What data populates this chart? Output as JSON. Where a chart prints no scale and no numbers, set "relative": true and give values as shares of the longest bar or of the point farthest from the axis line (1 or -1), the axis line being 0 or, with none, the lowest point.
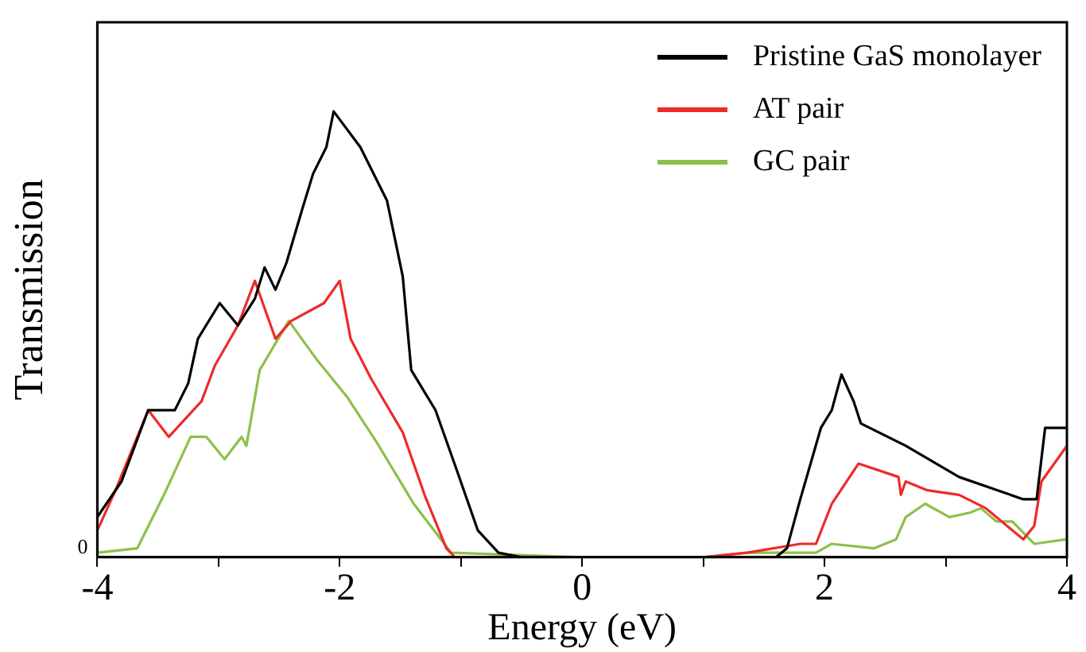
{
  "chart_data": {
    "type": "line",
    "relative": true,
    "xlabel": "Energy (eV)",
    "ylabel": "Transmission",
    "xlim": [
      -4,
      4
    ],
    "xticks": [
      -4,
      {
        "value": -3,
        "label": null
      },
      -2,
      {
        "value": -1,
        "label": null
      },
      0,
      {
        "value": 1,
        "label": null
      },
      2,
      {
        "value": 3,
        "label": null
      },
      4
    ],
    "annotations": [
      "0"
    ],
    "grid": false,
    "legend": "top right",
    "marker": "none",
    "line_style": "solid",
    "series": [
      {
        "name": "Pristine GaS monolayer",
        "color": "#000000",
        "x": [
          -4.0,
          -3.8,
          -3.58,
          -3.36,
          -3.25,
          -3.17,
          -2.99,
          -2.84,
          -2.7,
          -2.62,
          -2.53,
          -2.44,
          -2.31,
          -2.22,
          -2.11,
          -2.05,
          -1.83,
          -1.61,
          -1.48,
          -1.41,
          -1.21,
          -1.04,
          -0.86,
          -0.69,
          -0.5,
          0,
          1,
          1.6,
          1.69,
          1.8,
          1.97,
          2.06,
          2.14,
          2.24,
          2.3,
          2.67,
          3.11,
          3.64,
          3.75,
          3.82,
          4.0
        ],
        "values": [
          0.09,
          0.17,
          0.33,
          0.33,
          0.39,
          0.49,
          0.57,
          0.52,
          0.58,
          0.65,
          0.6,
          0.66,
          0.78,
          0.86,
          0.92,
          1.0,
          0.92,
          0.8,
          0.63,
          0.42,
          0.33,
          0.2,
          0.06,
          0.01,
          0,
          0,
          0,
          0,
          0.02,
          0.13,
          0.29,
          0.33,
          0.41,
          0.35,
          0.3,
          0.25,
          0.18,
          0.13,
          0.13,
          0.29,
          0.29
        ]
      },
      {
        "name": "AT pair",
        "color": "#ee2a2a",
        "x": [
          -4.0,
          -3.85,
          -3.58,
          -3.41,
          -3.14,
          -3.03,
          -2.84,
          -2.7,
          -2.53,
          -2.4,
          -2.13,
          -2.0,
          -1.91,
          -1.74,
          -1.48,
          -1.3,
          -1.12,
          -1.05,
          0,
          1,
          1.36,
          1.8,
          1.93,
          2.06,
          2.28,
          2.61,
          2.63,
          2.67,
          2.85,
          3.11,
          3.33,
          3.64,
          3.73,
          3.79,
          4.0
        ],
        "values": [
          0.06,
          0.15,
          0.33,
          0.27,
          0.35,
          0.43,
          0.52,
          0.62,
          0.49,
          0.53,
          0.57,
          0.62,
          0.49,
          0.4,
          0.28,
          0.14,
          0.02,
          0,
          0,
          0,
          0.01,
          0.03,
          0.03,
          0.12,
          0.21,
          0.18,
          0.14,
          0.17,
          0.15,
          0.14,
          0.11,
          0.04,
          0.07,
          0.17,
          0.25
        ]
      },
      {
        "name": "GC pair",
        "color": "#8dc04a",
        "x": [
          -4.0,
          -3.67,
          -3.45,
          -3.23,
          -3.1,
          -2.95,
          -2.81,
          -2.77,
          -2.66,
          -2.42,
          -2.18,
          -1.94,
          -1.7,
          -1.39,
          -1.08,
          0,
          1,
          1.36,
          1.93,
          2.06,
          2.41,
          2.59,
          2.67,
          2.83,
          3.03,
          3.2,
          3.29,
          3.42,
          3.55,
          3.73,
          3.99
        ],
        "values": [
          0.01,
          0.02,
          0.14,
          0.27,
          0.27,
          0.22,
          0.27,
          0.25,
          0.42,
          0.53,
          0.44,
          0.36,
          0.26,
          0.12,
          0.01,
          0,
          0,
          0.01,
          0.01,
          0.03,
          0.02,
          0.04,
          0.09,
          0.12,
          0.09,
          0.1,
          0.11,
          0.08,
          0.08,
          0.03,
          0.04
        ]
      }
    ]
  }
}
